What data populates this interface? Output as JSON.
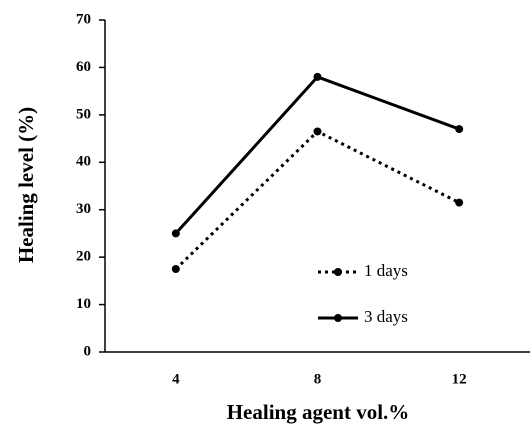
{
  "chart_data": {
    "type": "line",
    "xlabel": "Healing agent vol.%",
    "ylabel": "Healing level (%)",
    "categories": [
      "4",
      "8",
      "12"
    ],
    "series": [
      {
        "name": "1 days",
        "color": "#000000",
        "line_style": "dotted",
        "values": [
          17.5,
          46.5,
          31.5
        ]
      },
      {
        "name": "3 days",
        "color": "#000000",
        "line_style": "solid",
        "values": [
          25,
          58,
          47
        ]
      }
    ],
    "ylim": [
      0,
      70
    ],
    "yticks": [
      0,
      10,
      20,
      30,
      40,
      50,
      60,
      70
    ],
    "grid": false
  }
}
